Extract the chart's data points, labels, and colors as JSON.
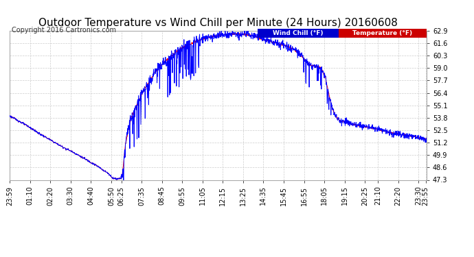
{
  "title": "Outdoor Temperature vs Wind Chill per Minute (24 Hours) 20160608",
  "copyright": "Copyright 2016 Cartronics.com",
  "legend_wind_chill": "Wind Chill (°F)",
  "legend_temperature": "Temperature (°F)",
  "wind_chill_color": "#0000ff",
  "temperature_color": "#ff0000",
  "wind_chill_legend_bg": "#0000cc",
  "temperature_legend_bg": "#cc0000",
  "background_color": "#ffffff",
  "plot_bg_color": "#ffffff",
  "grid_color": "#cccccc",
  "ylim_min": 47.3,
  "ylim_max": 62.9,
  "yticks": [
    47.3,
    48.6,
    49.9,
    51.2,
    52.5,
    53.8,
    55.1,
    56.4,
    57.7,
    59.0,
    60.3,
    61.6,
    62.9
  ],
  "xtick_labels": [
    "23:59",
    "01:10",
    "02:20",
    "03:30",
    "04:40",
    "05:50",
    "06:25",
    "07:35",
    "08:45",
    "09:55",
    "11:05",
    "12:15",
    "13:25",
    "14:35",
    "15:45",
    "16:55",
    "18:05",
    "19:15",
    "20:25",
    "21:10",
    "22:20",
    "23:30",
    "23:55"
  ],
  "title_fontsize": 11,
  "axis_fontsize": 7,
  "copyright_fontsize": 7
}
